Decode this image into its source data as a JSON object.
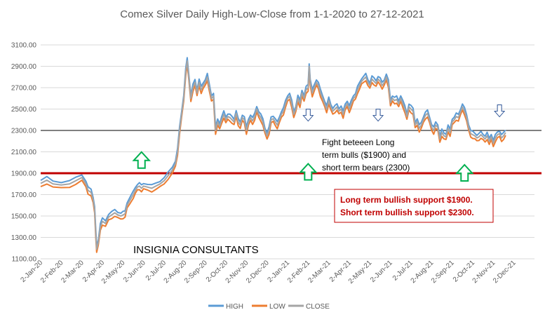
{
  "chart_data": {
    "type": "line",
    "title": "Comex Silver Daily High-Low-Close from 1-1-2020 to 27-12-2021",
    "xlabel": "",
    "ylabel": "",
    "ylim": [
      1100,
      3100
    ],
    "yticks": [
      "1100.00",
      "1300.00",
      "1500.00",
      "1700.00",
      "1900.00",
      "2100.00",
      "2300.00",
      "2500.00",
      "2700.00",
      "2900.00",
      "3100.00"
    ],
    "x_tick_labels": [
      "2-Jan-20",
      "2-Feb-20",
      "2-Mar-20",
      "2-Apr-20",
      "2-May-20",
      "2-Jun-20",
      "2-Jul-20",
      "2-Aug-20",
      "2-Sep-20",
      "2-Oct-20",
      "2-Nov-20",
      "2-Dec-20",
      "2-Jan-21",
      "2-Feb-21",
      "2-Mar-21",
      "2-Apr-21",
      "2-May-21",
      "2-Jun-21",
      "2-Jul-21",
      "2-Aug-21",
      "2-Sep-21",
      "2-Oct-21",
      "2-Nov-21",
      "2-Dec-21"
    ],
    "x_range_months": [
      0,
      24
    ],
    "legend_position": "bottom",
    "grid": "horizontal",
    "series": [
      {
        "name": "HIGH",
        "color": "#5b9bd5"
      },
      {
        "name": "LOW",
        "color": "#ed7d31"
      },
      {
        "name": "CLOSE",
        "color": "#a5a5a5"
      }
    ],
    "close_points": [
      [
        0.0,
        1805
      ],
      [
        0.3,
        1835
      ],
      [
        0.6,
        1800
      ],
      [
        1.0,
        1790
      ],
      [
        1.4,
        1800
      ],
      [
        1.7,
        1830
      ],
      [
        2.0,
        1860
      ],
      [
        2.2,
        1800
      ],
      [
        2.3,
        1740
      ],
      [
        2.45,
        1720
      ],
      [
        2.55,
        1650
      ],
      [
        2.62,
        1560
      ],
      [
        2.68,
        1330
      ],
      [
        2.72,
        1190
      ],
      [
        2.8,
        1250
      ],
      [
        2.9,
        1400
      ],
      [
        3.0,
        1450
      ],
      [
        3.15,
        1430
      ],
      [
        3.3,
        1490
      ],
      [
        3.45,
        1510
      ],
      [
        3.6,
        1530
      ],
      [
        3.75,
        1510
      ],
      [
        3.9,
        1500
      ],
      [
        4.0,
        1510
      ],
      [
        4.1,
        1520
      ],
      [
        4.2,
        1600
      ],
      [
        4.35,
        1650
      ],
      [
        4.5,
        1700
      ],
      [
        4.6,
        1740
      ],
      [
        4.7,
        1770
      ],
      [
        4.8,
        1780
      ],
      [
        4.9,
        1760
      ],
      [
        5.0,
        1780
      ],
      [
        5.2,
        1770
      ],
      [
        5.4,
        1760
      ],
      [
        5.6,
        1780
      ],
      [
        5.8,
        1800
      ],
      [
        6.0,
        1830
      ],
      [
        6.2,
        1880
      ],
      [
        6.4,
        1930
      ],
      [
        6.55,
        1990
      ],
      [
        6.65,
        2100
      ],
      [
        6.75,
        2300
      ],
      [
        6.85,
        2450
      ],
      [
        6.95,
        2600
      ],
      [
        7.05,
        2850
      ],
      [
        7.12,
        2950
      ],
      [
        7.2,
        2800
      ],
      [
        7.3,
        2600
      ],
      [
        7.4,
        2700
      ],
      [
        7.5,
        2750
      ],
      [
        7.6,
        2650
      ],
      [
        7.7,
        2750
      ],
      [
        7.8,
        2680
      ],
      [
        7.9,
        2720
      ],
      [
        8.0,
        2750
      ],
      [
        8.1,
        2800
      ],
      [
        8.2,
        2700
      ],
      [
        8.3,
        2600
      ],
      [
        8.4,
        2620
      ],
      [
        8.5,
        2300
      ],
      [
        8.6,
        2380
      ],
      [
        8.7,
        2340
      ],
      [
        8.8,
        2400
      ],
      [
        8.9,
        2450
      ],
      [
        9.0,
        2400
      ],
      [
        9.1,
        2430
      ],
      [
        9.2,
        2420
      ],
      [
        9.3,
        2400
      ],
      [
        9.4,
        2380
      ],
      [
        9.5,
        2460
      ],
      [
        9.6,
        2380
      ],
      [
        9.7,
        2350
      ],
      [
        9.8,
        2420
      ],
      [
        9.9,
        2400
      ],
      [
        10.0,
        2300
      ],
      [
        10.1,
        2380
      ],
      [
        10.2,
        2420
      ],
      [
        10.3,
        2390
      ],
      [
        10.4,
        2430
      ],
      [
        10.5,
        2500
      ],
      [
        10.6,
        2450
      ],
      [
        10.7,
        2420
      ],
      [
        10.8,
        2380
      ],
      [
        10.9,
        2300
      ],
      [
        11.0,
        2250
      ],
      [
        11.1,
        2300
      ],
      [
        11.2,
        2400
      ],
      [
        11.3,
        2410
      ],
      [
        11.4,
        2380
      ],
      [
        11.5,
        2350
      ],
      [
        11.6,
        2400
      ],
      [
        11.7,
        2450
      ],
      [
        11.8,
        2480
      ],
      [
        11.9,
        2550
      ],
      [
        12.0,
        2600
      ],
      [
        12.1,
        2620
      ],
      [
        12.2,
        2550
      ],
      [
        12.3,
        2450
      ],
      [
        12.4,
        2500
      ],
      [
        12.5,
        2600
      ],
      [
        12.6,
        2550
      ],
      [
        12.7,
        2650
      ],
      [
        12.8,
        2600
      ],
      [
        12.9,
        2680
      ],
      [
        13.0,
        2700
      ],
      [
        13.05,
        2900
      ],
      [
        13.1,
        2750
      ],
      [
        13.2,
        2650
      ],
      [
        13.3,
        2700
      ],
      [
        13.4,
        2750
      ],
      [
        13.5,
        2720
      ],
      [
        13.6,
        2650
      ],
      [
        13.7,
        2600
      ],
      [
        13.8,
        2550
      ],
      [
        13.9,
        2500
      ],
      [
        14.0,
        2580
      ],
      [
        14.1,
        2520
      ],
      [
        14.2,
        2480
      ],
      [
        14.3,
        2500
      ],
      [
        14.4,
        2520
      ],
      [
        14.5,
        2480
      ],
      [
        14.6,
        2500
      ],
      [
        14.7,
        2450
      ],
      [
        14.8,
        2520
      ],
      [
        14.9,
        2550
      ],
      [
        15.0,
        2500
      ],
      [
        15.1,
        2550
      ],
      [
        15.2,
        2600
      ],
      [
        15.3,
        2620
      ],
      [
        15.4,
        2680
      ],
      [
        15.5,
        2720
      ],
      [
        15.6,
        2760
      ],
      [
        15.7,
        2780
      ],
      [
        15.8,
        2800
      ],
      [
        15.9,
        2750
      ],
      [
        16.0,
        2720
      ],
      [
        16.1,
        2780
      ],
      [
        16.2,
        2760
      ],
      [
        16.3,
        2740
      ],
      [
        16.4,
        2780
      ],
      [
        16.5,
        2760
      ],
      [
        16.6,
        2720
      ],
      [
        16.7,
        2750
      ],
      [
        16.8,
        2800
      ],
      [
        16.9,
        2740
      ],
      [
        17.0,
        2560
      ],
      [
        17.1,
        2600
      ],
      [
        17.2,
        2580
      ],
      [
        17.3,
        2590
      ],
      [
        17.4,
        2550
      ],
      [
        17.5,
        2600
      ],
      [
        17.6,
        2550
      ],
      [
        17.7,
        2500
      ],
      [
        17.8,
        2430
      ],
      [
        17.9,
        2520
      ],
      [
        18.0,
        2500
      ],
      [
        18.1,
        2480
      ],
      [
        18.2,
        2350
      ],
      [
        18.3,
        2380
      ],
      [
        18.4,
        2320
      ],
      [
        18.5,
        2350
      ],
      [
        18.6,
        2400
      ],
      [
        18.7,
        2440
      ],
      [
        18.8,
        2460
      ],
      [
        18.9,
        2400
      ],
      [
        19.0,
        2330
      ],
      [
        19.1,
        2300
      ],
      [
        19.2,
        2350
      ],
      [
        19.3,
        2330
      ],
      [
        19.4,
        2220
      ],
      [
        19.5,
        2280
      ],
      [
        19.6,
        2250
      ],
      [
        19.7,
        2240
      ],
      [
        19.8,
        2320
      ],
      [
        19.9,
        2280
      ],
      [
        20.0,
        2380
      ],
      [
        20.1,
        2400
      ],
      [
        20.2,
        2430
      ],
      [
        20.3,
        2420
      ],
      [
        20.4,
        2470
      ],
      [
        20.5,
        2520
      ],
      [
        20.6,
        2480
      ],
      [
        20.7,
        2420
      ],
      [
        20.8,
        2330
      ],
      [
        20.9,
        2270
      ],
      [
        21.0,
        2260
      ],
      [
        21.1,
        2250
      ],
      [
        21.2,
        2230
      ],
      [
        21.3,
        2240
      ],
      [
        21.4,
        2260
      ],
      [
        21.5,
        2240
      ],
      [
        21.6,
        2220
      ],
      [
        21.7,
        2250
      ],
      [
        21.8,
        2200
      ],
      [
        21.9,
        2240
      ],
      [
        22.0,
        2180
      ],
      [
        22.1,
        2230
      ],
      [
        22.2,
        2260
      ],
      [
        22.3,
        2270
      ],
      [
        22.4,
        2230
      ],
      [
        22.5,
        2250
      ],
      [
        22.6,
        2280
      ]
    ],
    "reference_lines": [
      {
        "value": 1900,
        "color": "#c00000",
        "from_month": 0,
        "to_month": 24
      },
      {
        "value": 2300,
        "color": "#000000",
        "from_month": 0,
        "to_month": 24
      }
    ],
    "annotations": [
      {
        "text_lines": [
          "Fight beteeen Long",
          "term bulls ($1900) and",
          "short term bears (2300)"
        ],
        "kind": "text"
      },
      {
        "text_lines": [
          "Long term bullish support $1900.",
          "Short term bullish support $2300."
        ],
        "kind": "boxed"
      },
      {
        "text": "INSIGNIA CONSULTANTS",
        "kind": "brand"
      }
    ],
    "arrows_up": [
      {
        "month": 4.9,
        "value": 2020,
        "color": "#00b050"
      },
      {
        "month": 13.0,
        "value": 1910,
        "color": "#00b050"
      },
      {
        "month": 20.6,
        "value": 1900,
        "color": "#00b050"
      }
    ],
    "arrows_down": [
      {
        "month": 13.0,
        "value": 2440,
        "color": "#2f5597"
      },
      {
        "month": 16.4,
        "value": 2440,
        "color": "#2f5597"
      },
      {
        "month": 22.3,
        "value": 2480,
        "color": "#2f5597"
      }
    ]
  }
}
